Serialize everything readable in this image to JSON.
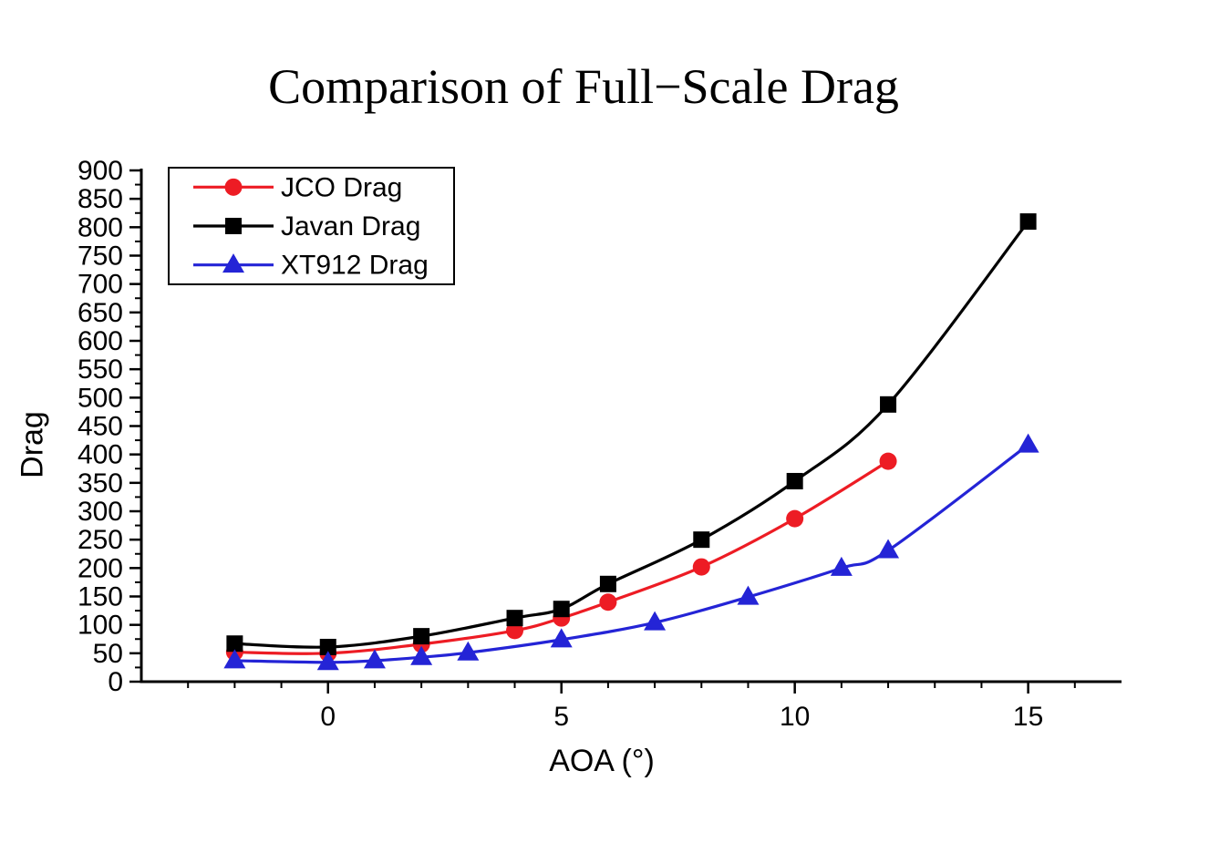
{
  "chart_data": {
    "type": "line",
    "title": "Comparison of Full−Scale Drag",
    "xlabel": "AOA (°)",
    "ylabel": "Drag",
    "xlim": [
      -4,
      17
    ],
    "ylim": [
      0,
      900
    ],
    "x_major_ticks": [
      0,
      5,
      10,
      15
    ],
    "x_minor_step": 1,
    "y_major_step": 50,
    "y_minor_step": 25,
    "grid": false,
    "legend_position": "top-left",
    "axis_color": "#000000",
    "background": "#ffffff",
    "series": [
      {
        "name": "JCO Drag",
        "color": "#ed1c24",
        "marker": "circle",
        "x": [
          -2,
          0,
          2,
          4,
          5,
          6,
          8,
          10,
          12
        ],
        "y": [
          52,
          50,
          66,
          90,
          112,
          140,
          202,
          287,
          388
        ]
      },
      {
        "name": "Javan Drag",
        "color": "#000000",
        "marker": "square",
        "x": [
          -2,
          0,
          2,
          4,
          5,
          6,
          8,
          10,
          12,
          15
        ],
        "y": [
          67,
          61,
          80,
          112,
          128,
          172,
          250,
          353,
          488,
          810
        ]
      },
      {
        "name": "XT912 Drag",
        "color": "#2424d6",
        "marker": "triangle",
        "x": [
          -2,
          0,
          1,
          2,
          3,
          5,
          7,
          9,
          11,
          12,
          15
        ],
        "y": [
          37,
          34,
          37,
          43,
          51,
          74,
          104,
          149,
          200,
          231,
          417
        ]
      }
    ]
  }
}
